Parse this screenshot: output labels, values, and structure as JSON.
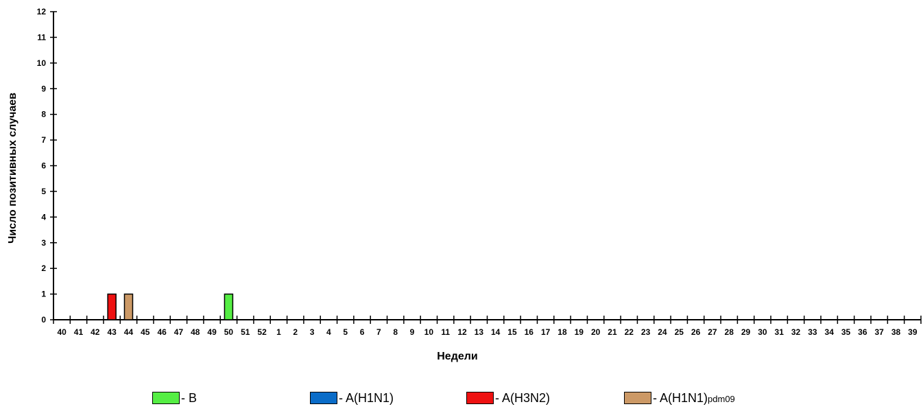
{
  "chart_data": {
    "type": "bar",
    "xlabel": "Недели",
    "ylabel": "Число позитивных случаев",
    "ylim": [
      0,
      12
    ],
    "yticks": [
      "0",
      "1",
      "2",
      "3",
      "4",
      "5",
      "6",
      "7",
      "8",
      "9",
      "10",
      "11",
      "12"
    ],
    "categories": [
      "40",
      "41",
      "42",
      "43",
      "44",
      "45",
      "46",
      "47",
      "48",
      "49",
      "50",
      "51",
      "52",
      "1",
      "2",
      "3",
      "4",
      "5",
      "6",
      "7",
      "8",
      "9",
      "10",
      "11",
      "12",
      "13",
      "14",
      "15",
      "16",
      "17",
      "18",
      "19",
      "20",
      "21",
      "22",
      "23",
      "24",
      "25",
      "26",
      "27",
      "28",
      "29",
      "30",
      "31",
      "32",
      "33",
      "34",
      "35",
      "36",
      "37",
      "38",
      "39"
    ],
    "series": [
      {
        "name": "B",
        "color": "#55ee44",
        "values": [
          0,
          0,
          0,
          0,
          0,
          0,
          0,
          0,
          0,
          0,
          1,
          0,
          0,
          0,
          0,
          0,
          0,
          0,
          0,
          0,
          0,
          0,
          0,
          0,
          0,
          0,
          0,
          0,
          0,
          0,
          0,
          0,
          0,
          0,
          0,
          0,
          0,
          0,
          0,
          0,
          0,
          0,
          0,
          0,
          0,
          0,
          0,
          0,
          0,
          0,
          0,
          0
        ]
      },
      {
        "name": "A(H1N1)",
        "color": "#0a6cc8",
        "values": [
          0,
          0,
          0,
          0,
          0,
          0,
          0,
          0,
          0,
          0,
          0,
          0,
          0,
          0,
          0,
          0,
          0,
          0,
          0,
          0,
          0,
          0,
          0,
          0,
          0,
          0,
          0,
          0,
          0,
          0,
          0,
          0,
          0,
          0,
          0,
          0,
          0,
          0,
          0,
          0,
          0,
          0,
          0,
          0,
          0,
          0,
          0,
          0,
          0,
          0,
          0,
          0
        ]
      },
      {
        "name": "A(H3N2)",
        "color": "#ee1111",
        "values": [
          0,
          0,
          0,
          1,
          0,
          0,
          0,
          0,
          0,
          0,
          0,
          0,
          0,
          0,
          0,
          0,
          0,
          0,
          0,
          0,
          0,
          0,
          0,
          0,
          0,
          0,
          0,
          0,
          0,
          0,
          0,
          0,
          0,
          0,
          0,
          0,
          0,
          0,
          0,
          0,
          0,
          0,
          0,
          0,
          0,
          0,
          0,
          0,
          0,
          0,
          0,
          0
        ]
      },
      {
        "name": "A(H1N1)pdm09",
        "color": "#cc9966",
        "values": [
          0,
          0,
          0,
          0,
          1,
          0,
          0,
          0,
          0,
          0,
          0,
          0,
          0,
          0,
          0,
          0,
          0,
          0,
          0,
          0,
          0,
          0,
          0,
          0,
          0,
          0,
          0,
          0,
          0,
          0,
          0,
          0,
          0,
          0,
          0,
          0,
          0,
          0,
          0,
          0,
          0,
          0,
          0,
          0,
          0,
          0,
          0,
          0,
          0,
          0,
          0,
          0
        ]
      }
    ],
    "legend_position": "bottom",
    "grid": false
  },
  "legend": [
    {
      "prefix": "- ",
      "label": "B",
      "sub": "",
      "color": "#55ee44"
    },
    {
      "prefix": "- ",
      "label": "A(H1N1)",
      "sub": "",
      "color": "#0a6cc8"
    },
    {
      "prefix": "- ",
      "label": "A(H3N2)",
      "sub": "",
      "color": "#ee1111"
    },
    {
      "prefix": "- ",
      "label": "A(H1N1)",
      "sub": "pdm09",
      "color": "#cc9966"
    }
  ]
}
